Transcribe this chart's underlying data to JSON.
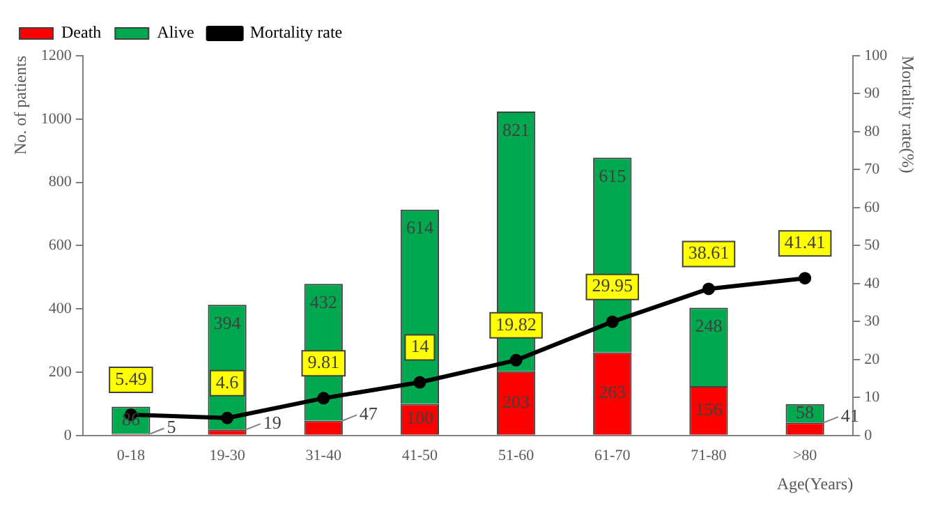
{
  "chart_data": {
    "type": "bar",
    "stacked": true,
    "xlabel": "Age(Years)",
    "ylabel": "No. of patients",
    "y2label": "Mortality rate(%)",
    "categories": [
      "0-18",
      "19-30",
      "31-40",
      "41-50",
      "51-60",
      "61-70",
      "71-80",
      ">80"
    ],
    "series": [
      {
        "name": "Death",
        "color": "#ff0000",
        "values": [
          5,
          19,
          47,
          100,
          203,
          263,
          156,
          41
        ]
      },
      {
        "name": "Alive",
        "color": "#00a84f",
        "values": [
          86,
          394,
          432,
          614,
          821,
          615,
          248,
          58
        ]
      },
      {
        "name": "Mortality rate",
        "type": "line",
        "axis": "y2",
        "color": "#000000",
        "marker": "circle",
        "values": [
          5.49,
          4.6,
          9.81,
          14,
          19.82,
          29.95,
          38.61,
          41.41
        ]
      }
    ],
    "ylim": [
      0,
      1200
    ],
    "yticks": [
      0,
      200,
      400,
      600,
      800,
      1000,
      1200
    ],
    "y2lim": [
      0,
      100
    ],
    "y2ticks": [
      0,
      10,
      20,
      30,
      40,
      50,
      60,
      70,
      80,
      90,
      100
    ],
    "data_labels": true,
    "grid": false,
    "legend": "top left"
  }
}
